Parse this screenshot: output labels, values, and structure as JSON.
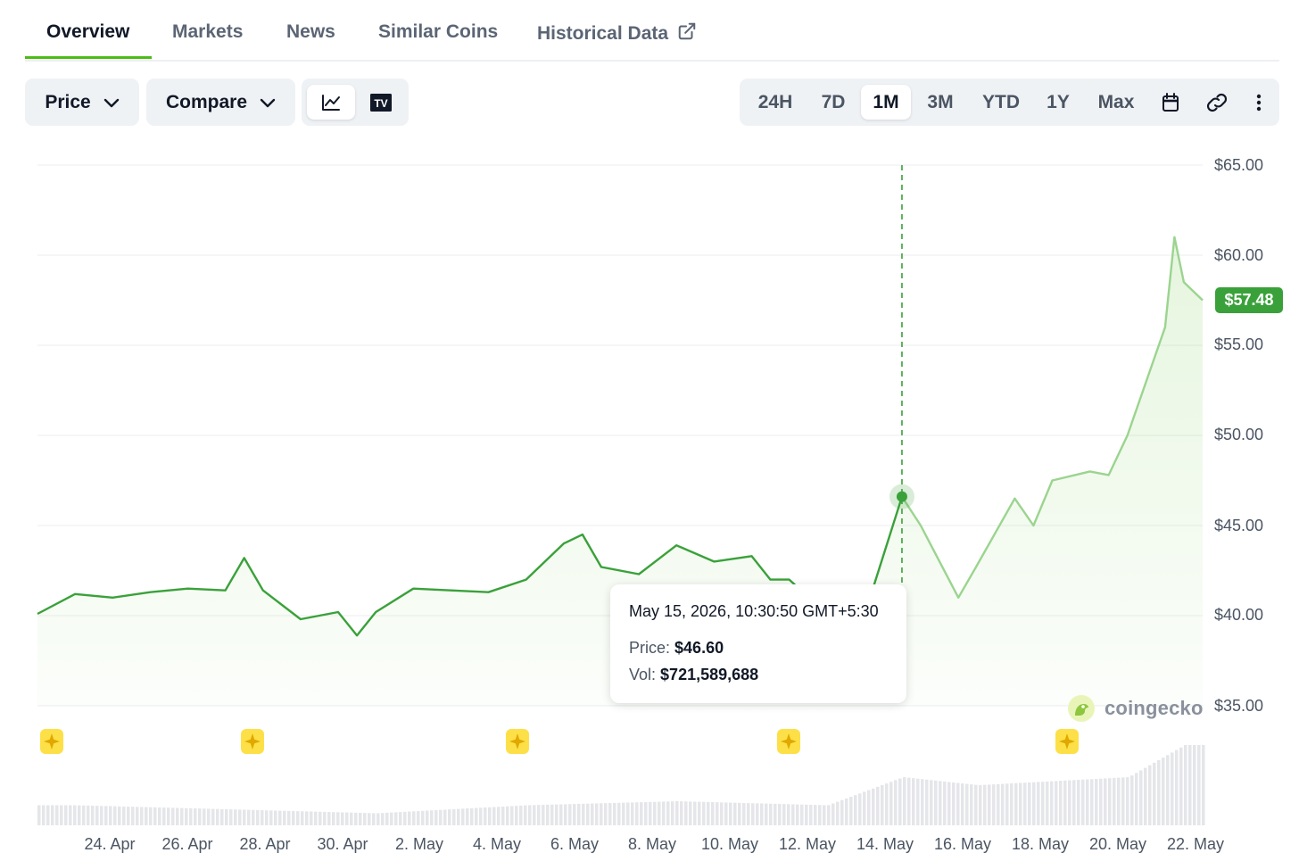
{
  "tabs": [
    {
      "label": "Overview",
      "active": true
    },
    {
      "label": "Markets",
      "active": false
    },
    {
      "label": "News",
      "active": false
    },
    {
      "label": "Similar Coins",
      "active": false
    },
    {
      "label": "Historical Data",
      "active": false,
      "icon": "external-link-icon"
    }
  ],
  "toolbar": {
    "price_dropdown": "Price",
    "compare_dropdown": "Compare",
    "chart_modes": [
      {
        "icon": "line-chart-icon",
        "active": true
      },
      {
        "icon": "tradingview-icon",
        "active": false
      }
    ],
    "ranges": [
      {
        "label": "24H",
        "active": false
      },
      {
        "label": "7D",
        "active": false
      },
      {
        "label": "1M",
        "active": true
      },
      {
        "label": "3M",
        "active": false
      },
      {
        "label": "YTD",
        "active": false
      },
      {
        "label": "1Y",
        "active": false
      },
      {
        "label": "Max",
        "active": false
      }
    ],
    "extra_icons": [
      "calendar-icon",
      "link-icon",
      "more-vertical-icon"
    ]
  },
  "current_price": "$57.48",
  "tooltip": {
    "date": "May 15, 2026, 10:30:50 GMT+5:30",
    "price_label": "Price:",
    "price_value": "$46.60",
    "vol_label": "Vol:",
    "vol_value": "$721,589,688"
  },
  "watermark": "coingecko",
  "colors": {
    "accent": "#4cbb17",
    "line": "#3aa13a",
    "line_faded": "#9bd48f",
    "badge": "#3aa13a",
    "event": "#fde047"
  },
  "chart_data": {
    "type": "line",
    "y_ticks": [
      "$65.00",
      "$60.00",
      "$55.00",
      "$50.00",
      "$45.00",
      "$40.00",
      "$35.00"
    ],
    "ylim": [
      35,
      65
    ],
    "x_ticks": [
      "24. Apr",
      "26. Apr",
      "28. Apr",
      "30. Apr",
      "2. May",
      "4. May",
      "6. May",
      "8. May",
      "10. May",
      "12. May",
      "14. May",
      "16. May",
      "18. May",
      "20. May",
      "22. May"
    ],
    "x_range": [
      "2026-04-22",
      "2026-05-23"
    ],
    "series": [
      {
        "x": [
          "2026-04-22",
          "2026-04-23",
          "2026-04-24",
          "2026-04-25",
          "2026-04-26",
          "2026-04-27",
          "2026-04-27T12",
          "2026-04-28",
          "2026-04-29",
          "2026-04-30",
          "2026-04-30T12",
          "2026-05-01",
          "2026-05-02",
          "2026-05-03",
          "2026-05-04",
          "2026-05-05",
          "2026-05-06",
          "2026-05-06T12",
          "2026-05-07",
          "2026-05-08",
          "2026-05-09",
          "2026-05-10",
          "2026-05-11",
          "2026-05-11T12",
          "2026-05-12",
          "2026-05-13",
          "2026-05-14",
          "2026-05-15",
          "2026-05-15T12",
          "2026-05-16",
          "2026-05-16T12",
          "2026-05-17",
          "2026-05-18",
          "2026-05-18T12",
          "2026-05-19",
          "2026-05-20",
          "2026-05-20T12",
          "2026-05-21",
          "2026-05-21T12",
          "2026-05-22",
          "2026-05-22T06",
          "2026-05-22T12",
          "2026-05-23"
        ],
        "y": [
          40.1,
          41.2,
          41.0,
          41.3,
          41.5,
          41.4,
          43.2,
          41.4,
          39.8,
          40.2,
          38.9,
          40.2,
          41.5,
          41.4,
          41.3,
          42.0,
          44.0,
          44.5,
          42.7,
          42.3,
          43.9,
          43.0,
          43.3,
          42.0,
          42.0,
          40.1,
          40.0,
          46.6,
          45.0,
          43.0,
          41.0,
          42.8,
          46.5,
          45.0,
          47.5,
          48.0,
          47.8,
          50.0,
          53.0,
          56.0,
          61.0,
          58.5,
          57.5
        ]
      }
    ],
    "volume": {
      "x": [
        "2026-04-23",
        "2026-04-27",
        "2026-05-01",
        "2026-05-05",
        "2026-05-09",
        "2026-05-13",
        "2026-05-15",
        "2026-05-17",
        "2026-05-19",
        "2026-05-21",
        "2026-05-22T12"
      ],
      "values": [
        0.25,
        0.2,
        0.15,
        0.25,
        0.3,
        0.25,
        0.6,
        0.5,
        0.55,
        0.6,
        1.0
      ]
    }
  }
}
